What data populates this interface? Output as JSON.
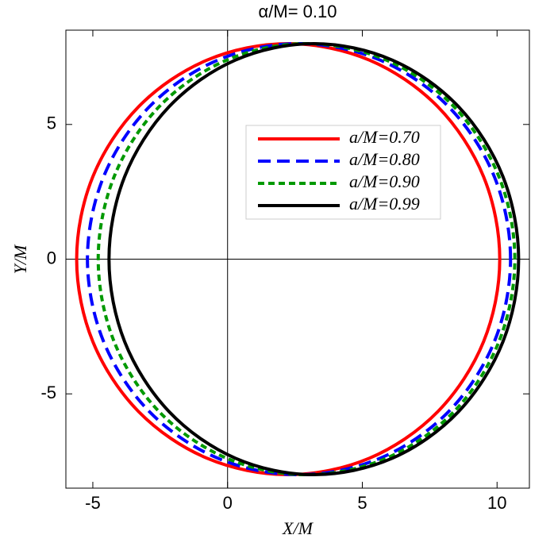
{
  "chart_data": {
    "type": "line",
    "title": "α/M= 0.10",
    "x_label": "X/M",
    "y_label": "Y/M",
    "xlim": [
      -6,
      11.2
    ],
    "ylim": [
      -8.5,
      8.5
    ],
    "xticks": [
      -5,
      0,
      5,
      10
    ],
    "yticks": [
      -5,
      0,
      5
    ],
    "closed": true,
    "series": [
      {
        "name": "a/M=0.70",
        "color": "#ff0000",
        "dash": "solid",
        "x": [
          10.1,
          9.5,
          7.8,
          5.26,
          2.25,
          -0.76,
          -3.3,
          -5.0,
          -5.6,
          -5.0,
          -3.3,
          -0.76,
          2.25,
          5.26,
          7.8,
          9.5
        ],
        "values": [
          0,
          3.06,
          5.66,
          7.39,
          8,
          7.39,
          5.66,
          3.06,
          0,
          -3.06,
          -5.66,
          -7.39,
          -8,
          -7.39,
          -5.66,
          -3.06
        ]
      },
      {
        "name": "a/M=0.80",
        "color": "#0000ff",
        "dash": "long",
        "x": [
          10.5,
          9.9,
          8.2,
          5.66,
          2.65,
          -0.36,
          -2.9,
          -4.6,
          -5.2,
          -4.6,
          -2.9,
          -0.36,
          2.65,
          5.66,
          8.2,
          9.9
        ],
        "values": [
          0,
          3.06,
          5.66,
          7.39,
          8,
          7.39,
          5.66,
          3.06,
          0,
          -3.06,
          -5.66,
          -7.39,
          -8,
          -7.39,
          -5.66,
          -3.06
        ]
      },
      {
        "name": "a/M=0.90",
        "color": "#009900",
        "dash": "short",
        "x": [
          10.66,
          10.07,
          8.4,
          5.89,
          2.93,
          -0.03,
          -2.54,
          -4.21,
          -4.8,
          -4.21,
          -2.54,
          -0.03,
          2.93,
          5.89,
          8.4,
          10.07
        ],
        "values": [
          0,
          3.06,
          5.66,
          7.39,
          8,
          7.39,
          5.66,
          3.06,
          0,
          -3.06,
          -5.66,
          -7.39,
          -8,
          -7.39,
          -5.66,
          -3.06
        ]
      },
      {
        "name": "a/M=0.99",
        "color": "#000000",
        "dash": "solid",
        "x": [
          10.8,
          10.22,
          8.57,
          6.11,
          3.2,
          0.29,
          -2.17,
          -3.82,
          -4.4,
          -3.82,
          -2.17,
          0.29,
          3.2,
          6.11,
          8.57,
          10.22
        ],
        "values": [
          0,
          3.06,
          5.66,
          7.39,
          8,
          7.39,
          5.66,
          3.06,
          0,
          -3.06,
          -5.66,
          -7.39,
          -8,
          -7.39,
          -5.66,
          -3.06
        ]
      }
    ]
  }
}
